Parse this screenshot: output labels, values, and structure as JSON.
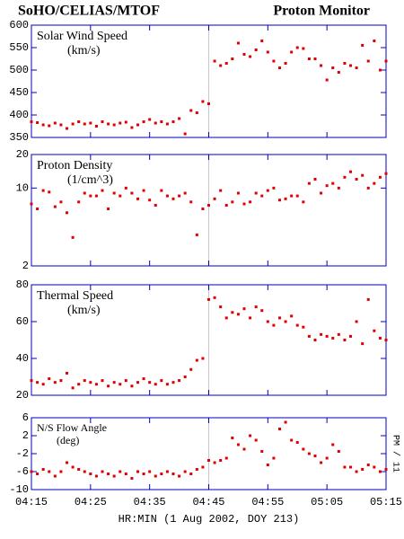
{
  "chart_data": [
    {
      "type": "scatter",
      "title": "SoHO/CELIAS/MTOF",
      "title_right": "Proton Monitor",
      "label": "Solar Wind Speed",
      "unit": "(km/s)",
      "color": "#e00000",
      "vline": 285,
      "xlim": [
        255,
        315
      ],
      "x": [
        255,
        256,
        257,
        258,
        259,
        260,
        261,
        262,
        263,
        264,
        265,
        266,
        267,
        268,
        269,
        270,
        271,
        272,
        273,
        274,
        275,
        276,
        277,
        278,
        279,
        280,
        281,
        282,
        283,
        284,
        285,
        286,
        287,
        288,
        289,
        290,
        291,
        292,
        293,
        294,
        295,
        296,
        297,
        298,
        299,
        300,
        301,
        302,
        303,
        304,
        305,
        306,
        307,
        308,
        309,
        310,
        311,
        312,
        313,
        314,
        315
      ],
      "values": [
        385,
        383,
        378,
        376,
        382,
        378,
        370,
        380,
        385,
        380,
        382,
        375,
        385,
        380,
        378,
        382,
        384,
        372,
        378,
        385,
        390,
        382,
        385,
        380,
        385,
        392,
        358,
        410,
        405,
        430,
        425,
        520,
        510,
        515,
        525,
        560,
        535,
        530,
        545,
        565,
        540,
        520,
        505,
        515,
        540,
        550,
        548,
        525,
        525,
        510,
        478,
        505,
        495,
        515,
        510,
        505,
        555,
        520,
        565,
        500,
        520
      ],
      "ylim": [
        350,
        600
      ],
      "yticks": [
        350,
        400,
        450,
        500,
        550,
        600
      ]
    },
    {
      "type": "scatter",
      "label": "Proton Density",
      "unit": "(1/cm^3)",
      "color": "#e00000",
      "vline": 285,
      "log_scale": true,
      "xlim": [
        255,
        315
      ],
      "x": [
        255,
        256,
        257,
        258,
        259,
        260,
        261,
        262,
        263,
        264,
        265,
        266,
        267,
        268,
        269,
        270,
        271,
        272,
        273,
        274,
        275,
        276,
        277,
        278,
        279,
        280,
        281,
        282,
        283,
        284,
        285,
        286,
        287,
        288,
        289,
        290,
        291,
        292,
        293,
        294,
        295,
        296,
        297,
        298,
        299,
        300,
        301,
        302,
        303,
        304,
        305,
        306,
        307,
        308,
        309,
        310,
        311,
        312,
        313,
        314,
        315
      ],
      "values": [
        7.2,
        6.5,
        9.5,
        9.2,
        6.8,
        7.5,
        6.0,
        3.6,
        7.5,
        9.0,
        8.5,
        8.5,
        9.5,
        6.5,
        9.0,
        8.5,
        10,
        9.0,
        8.0,
        9.5,
        7.8,
        7.0,
        9.5,
        8.5,
        8.0,
        8.5,
        9.0,
        7.5,
        3.8,
        6.5,
        7.0,
        8.0,
        9.5,
        7.0,
        7.5,
        9.0,
        7.2,
        7.5,
        9.0,
        8.5,
        9.5,
        10,
        7.8,
        8.0,
        8.5,
        8.5,
        7.5,
        11,
        12,
        9.0,
        10.5,
        11,
        10,
        12.5,
        14,
        12,
        13,
        10,
        11,
        12.5,
        13.5
      ],
      "ylim": [
        2,
        20
      ],
      "yticks": [
        2,
        10,
        20
      ]
    },
    {
      "type": "scatter",
      "label": "Thermal Speed",
      "unit": "(km/s)",
      "color": "#e00000",
      "vline": 285,
      "xlim": [
        255,
        315
      ],
      "x": [
        255,
        256,
        257,
        258,
        259,
        260,
        261,
        262,
        263,
        264,
        265,
        266,
        267,
        268,
        269,
        270,
        271,
        272,
        273,
        274,
        275,
        276,
        277,
        278,
        279,
        280,
        281,
        282,
        283,
        284,
        285,
        286,
        287,
        288,
        289,
        290,
        291,
        292,
        293,
        294,
        295,
        296,
        297,
        298,
        299,
        300,
        301,
        302,
        303,
        304,
        305,
        306,
        307,
        308,
        309,
        310,
        311,
        312,
        313,
        314,
        315
      ],
      "values": [
        28,
        27,
        26,
        29,
        27,
        28,
        32,
        24,
        26,
        28,
        27,
        26,
        28,
        25,
        27,
        26,
        28,
        25,
        27,
        29,
        27,
        26,
        28,
        26,
        27,
        28,
        30,
        34,
        39,
        40,
        72,
        73,
        68,
        62,
        65,
        64,
        67,
        62,
        68,
        66,
        60,
        58,
        62,
        60,
        63,
        58,
        57,
        52,
        50,
        53,
        52,
        51,
        53,
        50,
        52,
        60,
        48,
        72,
        55,
        51,
        50
      ],
      "ylim": [
        20,
        80
      ],
      "yticks": [
        20,
        40,
        60,
        80
      ]
    },
    {
      "type": "scatter",
      "label": "N/S Flow Angle",
      "unit": "(deg)",
      "color": "#e00000",
      "vline": 285,
      "annotation": "PM / 11",
      "xlim": [
        255,
        315
      ],
      "xlabel": "HR:MIN (1 Aug 2002, DOY 213)",
      "xticks": [
        {
          "value": 255,
          "label": "04:15"
        },
        {
          "value": 265,
          "label": "04:25"
        },
        {
          "value": 275,
          "label": "04:35"
        },
        {
          "value": 285,
          "label": "04:45"
        },
        {
          "value": 295,
          "label": "04:55"
        },
        {
          "value": 305,
          "label": "05:05"
        },
        {
          "value": 315,
          "label": "05:15"
        }
      ],
      "x": [
        255,
        256,
        257,
        258,
        259,
        260,
        261,
        262,
        263,
        264,
        265,
        266,
        267,
        268,
        269,
        270,
        271,
        272,
        273,
        274,
        275,
        276,
        277,
        278,
        279,
        280,
        281,
        282,
        283,
        284,
        285,
        286,
        287,
        288,
        289,
        290,
        291,
        292,
        293,
        294,
        295,
        296,
        297,
        298,
        299,
        300,
        301,
        302,
        303,
        304,
        305,
        306,
        307,
        308,
        309,
        310,
        311,
        312,
        313,
        314,
        315
      ],
      "values": [
        -6,
        -6.5,
        -5.5,
        -6,
        -7,
        -6,
        -4,
        -5,
        -5.5,
        -6,
        -6.5,
        -7,
        -6,
        -6.5,
        -7,
        -6,
        -6.5,
        -7.5,
        -6,
        -6.5,
        -6,
        -7,
        -6.5,
        -6,
        -6.5,
        -7,
        -6,
        -6.5,
        -5.5,
        -5,
        -3.5,
        -4,
        -3.5,
        -3,
        1.5,
        0,
        -1,
        2,
        1,
        -1.5,
        -4.5,
        -3,
        3.5,
        5,
        1,
        0.5,
        -1,
        -2,
        -2.5,
        -4,
        -3,
        0,
        -1.5,
        -5,
        -5,
        -6,
        -5.5,
        -4.5,
        -5,
        -6,
        -5.5
      ],
      "ylim": [
        -10,
        6
      ],
      "yticks": [
        -10,
        -6,
        -2,
        2,
        6
      ]
    }
  ]
}
